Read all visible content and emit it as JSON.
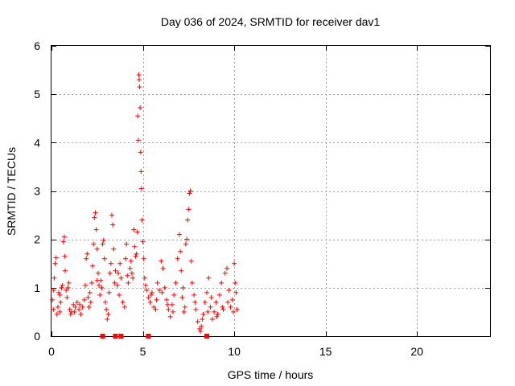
{
  "chart_data": {
    "type": "scatter",
    "title": "Day 036 of 2024, SRMTID for receiver dav1",
    "xlabel": "GPS time / hours",
    "ylabel": "SRMTID / TECUs",
    "xlim": [
      0,
      24
    ],
    "ylim": [
      0,
      6
    ],
    "xticks": [
      0,
      5,
      10,
      15,
      20
    ],
    "yticks": [
      0,
      1,
      2,
      3,
      4,
      5,
      6
    ],
    "grid": true,
    "series_color": "#ff0000",
    "series": [
      {
        "name": "SRMTID",
        "marker": "plus",
        "points": [
          [
            0.05,
            0.75
          ],
          [
            0.1,
            0.55
          ],
          [
            0.15,
            1.2
          ],
          [
            0.2,
            1.5
          ],
          [
            0.25,
            1.62
          ],
          [
            0.3,
            0.45
          ],
          [
            0.35,
            0.6
          ],
          [
            0.4,
            0.9
          ],
          [
            0.45,
            0.5
          ],
          [
            0.5,
            0.7
          ],
          [
            0.55,
            1.0
          ],
          [
            0.6,
            1.05
          ],
          [
            0.65,
            1.95
          ],
          [
            0.7,
            2.05
          ],
          [
            0.72,
            1.65
          ],
          [
            0.75,
            1.35
          ],
          [
            0.8,
            0.95
          ],
          [
            0.85,
            0.8
          ],
          [
            0.9,
            1.0
          ],
          [
            0.95,
            1.1
          ],
          [
            1.0,
            0.55
          ],
          [
            1.05,
            0.45
          ],
          [
            1.1,
            0.5
          ],
          [
            1.2,
            0.65
          ],
          [
            1.3,
            0.6
          ],
          [
            1.4,
            0.7
          ],
          [
            1.5,
            0.55
          ],
          [
            1.6,
            0.45
          ],
          [
            1.7,
            0.6
          ],
          [
            1.8,
            0.75
          ],
          [
            1.85,
            1.05
          ],
          [
            1.9,
            1.6
          ],
          [
            1.95,
            1.7
          ],
          [
            2.0,
            0.8
          ],
          [
            2.05,
            0.6
          ],
          [
            2.1,
            0.9
          ],
          [
            2.2,
            1.1
          ],
          [
            2.25,
            1.45
          ],
          [
            2.3,
            1.9
          ],
          [
            2.35,
            2.45
          ],
          [
            2.4,
            2.55
          ],
          [
            2.45,
            2.2
          ],
          [
            2.5,
            1.8
          ],
          [
            2.55,
            1.3
          ],
          [
            2.6,
            1.05
          ],
          [
            2.65,
            0.85
          ],
          [
            2.7,
            1.15
          ],
          [
            2.75,
            1.0
          ],
          [
            2.8,
            1.9
          ],
          [
            2.85,
            1.98
          ],
          [
            2.9,
            1.6
          ],
          [
            2.95,
            0.7
          ],
          [
            3.0,
            0.55
          ],
          [
            3.05,
            0.35
          ],
          [
            3.1,
            0.45
          ],
          [
            3.2,
            1.3
          ],
          [
            3.25,
            1.5
          ],
          [
            3.3,
            2.5
          ],
          [
            3.35,
            2.3
          ],
          [
            3.4,
            1.8
          ],
          [
            3.5,
            1.35
          ],
          [
            3.6,
            1.05
          ],
          [
            3.7,
            0.85
          ],
          [
            3.75,
            1.5
          ],
          [
            3.8,
            1.2
          ],
          [
            3.9,
            0.7
          ],
          [
            4.0,
            0.6
          ],
          [
            4.05,
            1.6
          ],
          [
            4.1,
            1.9
          ],
          [
            4.2,
            1.1
          ],
          [
            4.3,
            1.4
          ],
          [
            4.4,
            1.3
          ],
          [
            4.5,
            2.2
          ],
          [
            4.55,
            1.85
          ],
          [
            4.6,
            1.65
          ],
          [
            4.65,
            1.7
          ],
          [
            4.7,
            2.15
          ],
          [
            4.72,
            4.55
          ],
          [
            4.75,
            4.05
          ],
          [
            4.78,
            5.4
          ],
          [
            4.8,
            5.3
          ],
          [
            4.82,
            5.15
          ],
          [
            4.85,
            4.72
          ],
          [
            4.88,
            3.8
          ],
          [
            4.9,
            3.4
          ],
          [
            4.92,
            3.05
          ],
          [
            4.95,
            2.4
          ],
          [
            5.0,
            1.95
          ],
          [
            5.05,
            1.6
          ],
          [
            5.1,
            1.2
          ],
          [
            5.2,
            0.95
          ],
          [
            5.3,
            0.8
          ],
          [
            5.4,
            0.7
          ],
          [
            5.5,
            0.9
          ],
          [
            5.6,
            0.6
          ],
          [
            5.7,
            0.55
          ],
          [
            5.8,
            1.1
          ],
          [
            5.9,
            0.95
          ],
          [
            6.0,
            1.55
          ],
          [
            6.1,
            1.4
          ],
          [
            6.2,
            1.0
          ],
          [
            6.3,
            0.75
          ],
          [
            6.4,
            0.55
          ],
          [
            6.5,
            0.4
          ],
          [
            6.6,
            0.65
          ],
          [
            6.7,
            0.85
          ],
          [
            6.8,
            1.1
          ],
          [
            6.9,
            1.6
          ],
          [
            7.0,
            2.1
          ],
          [
            7.05,
            1.75
          ],
          [
            7.1,
            1.35
          ],
          [
            7.2,
            1.0
          ],
          [
            7.3,
            0.6
          ],
          [
            7.35,
            1.9
          ],
          [
            7.4,
            2.0
          ],
          [
            7.45,
            2.4
          ],
          [
            7.5,
            2.62
          ],
          [
            7.55,
            2.95
          ],
          [
            7.6,
            3.0
          ],
          [
            7.65,
            1.55
          ],
          [
            7.7,
            1.1
          ],
          [
            7.8,
            0.85
          ],
          [
            7.9,
            0.55
          ],
          [
            8.0,
            0.3
          ],
          [
            8.1,
            0.15
          ],
          [
            8.15,
            0.1
          ],
          [
            8.2,
            0.2
          ],
          [
            8.3,
            0.45
          ],
          [
            8.4,
            0.7
          ],
          [
            8.5,
            0.9
          ],
          [
            8.6,
            1.2
          ],
          [
            8.7,
            0.6
          ],
          [
            8.8,
            0.35
          ],
          [
            8.9,
            0.5
          ],
          [
            9.0,
            0.7
          ],
          [
            9.1,
            0.45
          ],
          [
            9.2,
            0.85
          ],
          [
            9.3,
            1.1
          ],
          [
            9.4,
            0.55
          ],
          [
            9.5,
            1.3
          ],
          [
            9.6,
            1.4
          ],
          [
            9.7,
            0.95
          ],
          [
            9.8,
            0.6
          ],
          [
            9.9,
            0.75
          ],
          [
            10.0,
            1.5
          ],
          [
            10.05,
            1.1
          ],
          [
            10.1,
            0.9
          ],
          [
            10.15,
            0.55
          ],
          [
            0.1,
            0.95
          ],
          [
            0.45,
            0.85
          ],
          [
            1.25,
            0.5
          ],
          [
            1.55,
            0.65
          ],
          [
            2.15,
            0.7
          ],
          [
            2.5,
            1.15
          ],
          [
            3.15,
            0.9
          ],
          [
            3.45,
            1.1
          ],
          [
            3.65,
            1.3
          ],
          [
            4.15,
            1.25
          ],
          [
            4.35,
            1.55
          ],
          [
            4.45,
            1.2
          ],
          [
            5.15,
            1.05
          ],
          [
            5.45,
            0.85
          ],
          [
            5.75,
            0.75
          ],
          [
            6.05,
            0.9
          ],
          [
            6.35,
            0.65
          ],
          [
            6.65,
            0.5
          ],
          [
            7.15,
            0.8
          ],
          [
            7.25,
            0.5
          ],
          [
            7.85,
            0.7
          ],
          [
            8.25,
            0.35
          ],
          [
            8.55,
            0.5
          ],
          [
            8.75,
            0.8
          ],
          [
            9.05,
            0.4
          ],
          [
            9.35,
            0.6
          ],
          [
            9.65,
            0.7
          ],
          [
            9.95,
            0.5
          ]
        ]
      },
      {
        "name": "zero markers",
        "marker": "square",
        "points": [
          [
            2.8,
            0
          ],
          [
            3.5,
            0
          ],
          [
            3.8,
            0
          ],
          [
            5.3,
            0
          ],
          [
            8.5,
            0
          ]
        ]
      }
    ]
  }
}
